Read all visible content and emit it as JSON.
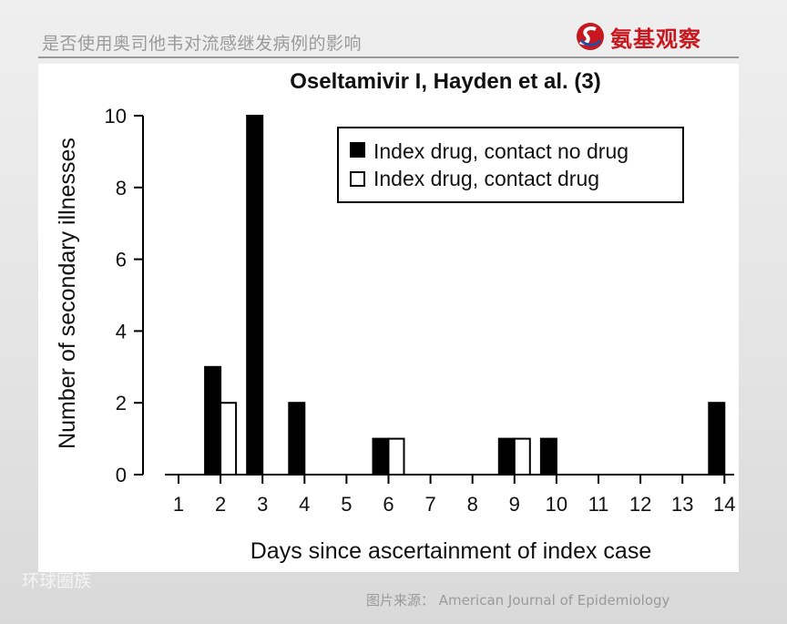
{
  "header": {
    "caption": "是否使用奥司他韦对流感继发病例的影响",
    "brand": "氨基观察"
  },
  "footer": {
    "source": "图片来源：  American Journal of Epidemiology",
    "watermark": "环球圈族"
  },
  "chart_data": {
    "type": "bar",
    "title": "Oseltamivir I, Hayden et al. (3)",
    "xlabel": "Days since ascertainment of index case",
    "ylabel": "Number of secondary illnesses",
    "categories": [
      "1",
      "2",
      "3",
      "4",
      "5",
      "6",
      "7",
      "8",
      "9",
      "10",
      "11",
      "12",
      "13",
      "14"
    ],
    "ylim": [
      0,
      10
    ],
    "yticks": [
      0,
      2,
      4,
      6,
      8,
      10
    ],
    "series": [
      {
        "name": "Index drug, contact no drug",
        "fill": "#000000",
        "values": [
          0,
          3,
          10,
          2,
          0,
          1,
          0,
          0,
          1,
          1,
          0,
          0,
          0,
          2
        ]
      },
      {
        "name": "Index drug, contact drug",
        "fill": "#ffffff",
        "values": [
          0,
          2,
          0,
          0,
          0,
          1,
          0,
          0,
          1,
          0,
          0,
          0,
          0,
          0
        ]
      }
    ],
    "legend_position": "top-right",
    "grid": false
  }
}
